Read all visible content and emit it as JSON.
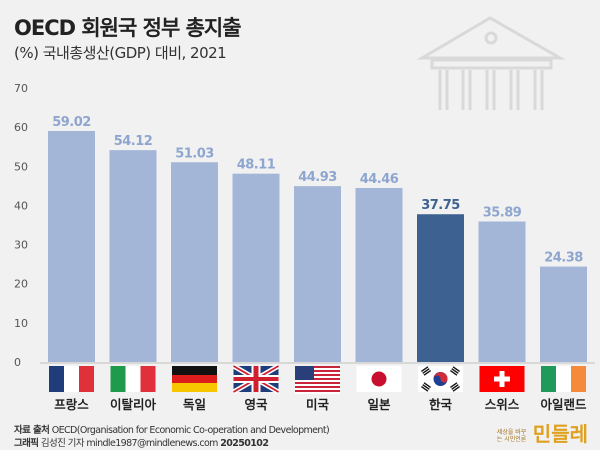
{
  "chart_data": {
    "type": "bar",
    "title": "OECD 회원국 정부 총지출",
    "subtitle": "(%) 국내총생산(GDP) 대비, 2021",
    "categories": [
      "프랑스",
      "이탈리아",
      "독일",
      "영국",
      "미국",
      "일본",
      "한국",
      "스위스",
      "아일랜드"
    ],
    "values": [
      59.02,
      54.12,
      51.03,
      48.11,
      44.93,
      44.46,
      37.75,
      35.89,
      24.38
    ],
    "value_labels": [
      "59.02",
      "54.12",
      "51.03",
      "48.11",
      "44.93",
      "44.46",
      "37.75",
      "35.89",
      "24.38"
    ],
    "flags": [
      "france-flag",
      "italy-flag",
      "germany-flag",
      "uk-flag",
      "usa-flag",
      "japan-flag",
      "korea-flag",
      "switzerland-flag",
      "ireland-flag"
    ],
    "highlight": "한국",
    "ylim": [
      0,
      70
    ],
    "yticks": [
      "0",
      "10",
      "20",
      "30",
      "40",
      "50",
      "60",
      "70"
    ],
    "grid": false,
    "colors": {
      "bar": "#a3b6d7",
      "highlight": "#3d6190",
      "label": "#8ea6cf",
      "highlight_label": "#3d6190"
    }
  },
  "footer": {
    "source_label": "자료 출처",
    "source": "OECD(Organisation for Economic Co-operation and Development)",
    "graphic_label": "그래픽",
    "author": "김성진 기자 mindle1987@mindlenews.com",
    "date": "20250102"
  },
  "logo": {
    "tagline": "세상을 바꾸는 시민언론",
    "name": "민들레"
  },
  "icon": "government-building-icon"
}
